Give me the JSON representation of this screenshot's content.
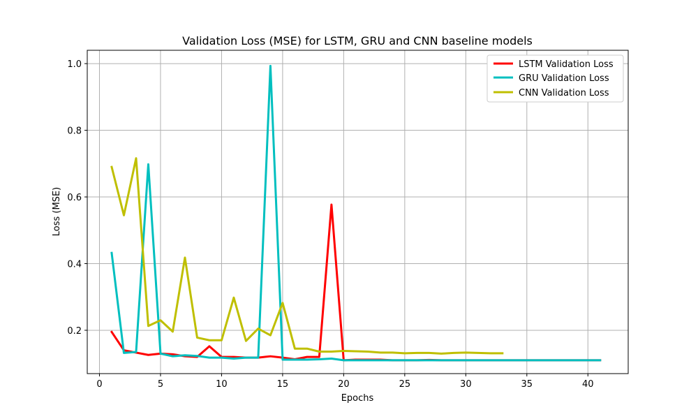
{
  "chart_data": {
    "type": "line",
    "title": "Validation Loss (MSE) for LSTM, GRU and CNN baseline models",
    "xlabel": "Epochs",
    "ylabel": "Loss (MSE)",
    "xlim": [
      -1,
      43.3
    ],
    "ylim": [
      0.07,
      1.04
    ],
    "xticks": [
      0,
      5,
      10,
      15,
      20,
      25,
      30,
      35,
      40
    ],
    "yticks": [
      0.2,
      0.4,
      0.6,
      0.8,
      1.0
    ],
    "xtick_labels": [
      "0",
      "5",
      "10",
      "15",
      "20",
      "25",
      "30",
      "35",
      "40"
    ],
    "ytick_labels": [
      "0.2",
      "0.4",
      "0.6",
      "0.8",
      "1.0"
    ],
    "grid": true,
    "legend_position": "top-right",
    "series": [
      {
        "name": "LSTM Validation Loss",
        "color": "#ff0000",
        "x": [
          1,
          2,
          3,
          4,
          5,
          6,
          7,
          8,
          9,
          10,
          11,
          12,
          13,
          14,
          15,
          16,
          17,
          18,
          19,
          20,
          21,
          22,
          23,
          24,
          25,
          26,
          27,
          28,
          29,
          30,
          31,
          32,
          33,
          34,
          35,
          36,
          37,
          38,
          39,
          40,
          41
        ],
        "y": [
          0.195,
          0.14,
          0.133,
          0.126,
          0.13,
          0.128,
          0.122,
          0.12,
          0.152,
          0.12,
          0.12,
          0.118,
          0.118,
          0.122,
          0.118,
          0.113,
          0.12,
          0.12,
          0.577,
          0.11,
          0.112,
          0.112,
          0.112,
          0.11,
          0.11,
          0.11,
          0.111,
          0.11,
          0.11,
          0.11,
          0.11,
          0.11,
          0.11,
          0.11,
          0.11,
          0.11,
          0.11,
          0.11,
          0.11,
          0.11,
          0.11
        ]
      },
      {
        "name": "GRU Validation Loss",
        "color": "#00bfbf",
        "x": [
          1,
          2,
          3,
          4,
          5,
          6,
          7,
          8,
          9,
          10,
          11,
          12,
          13,
          14,
          15,
          16,
          17,
          18,
          19,
          20,
          21,
          22,
          23,
          24,
          25,
          26,
          27,
          28,
          29,
          30,
          31,
          32,
          33,
          34,
          35,
          36,
          37,
          38,
          39,
          40,
          41
        ],
        "y": [
          0.432,
          0.132,
          0.135,
          0.698,
          0.13,
          0.122,
          0.125,
          0.123,
          0.118,
          0.118,
          0.115,
          0.118,
          0.118,
          0.993,
          0.112,
          0.112,
          0.112,
          0.113,
          0.115,
          0.11,
          0.11,
          0.11,
          0.11,
          0.11,
          0.11,
          0.11,
          0.11,
          0.11,
          0.11,
          0.11,
          0.11,
          0.11,
          0.11,
          0.11,
          0.11,
          0.11,
          0.11,
          0.11,
          0.11,
          0.11,
          0.11
        ]
      },
      {
        "name": "CNN Validation Loss",
        "color": "#bfbf00",
        "x": [
          1,
          2,
          3,
          4,
          5,
          6,
          7,
          8,
          9,
          10,
          11,
          12,
          13,
          14,
          15,
          16,
          17,
          18,
          19,
          20,
          21,
          22,
          23,
          24,
          25,
          26,
          27,
          28,
          29,
          30,
          31,
          32,
          33
        ],
        "y": [
          0.69,
          0.545,
          0.716,
          0.213,
          0.23,
          0.196,
          0.418,
          0.178,
          0.17,
          0.17,
          0.298,
          0.168,
          0.205,
          0.185,
          0.282,
          0.145,
          0.145,
          0.136,
          0.136,
          0.138,
          0.137,
          0.136,
          0.133,
          0.133,
          0.131,
          0.132,
          0.132,
          0.13,
          0.132,
          0.133,
          0.132,
          0.131,
          0.131
        ]
      }
    ]
  }
}
